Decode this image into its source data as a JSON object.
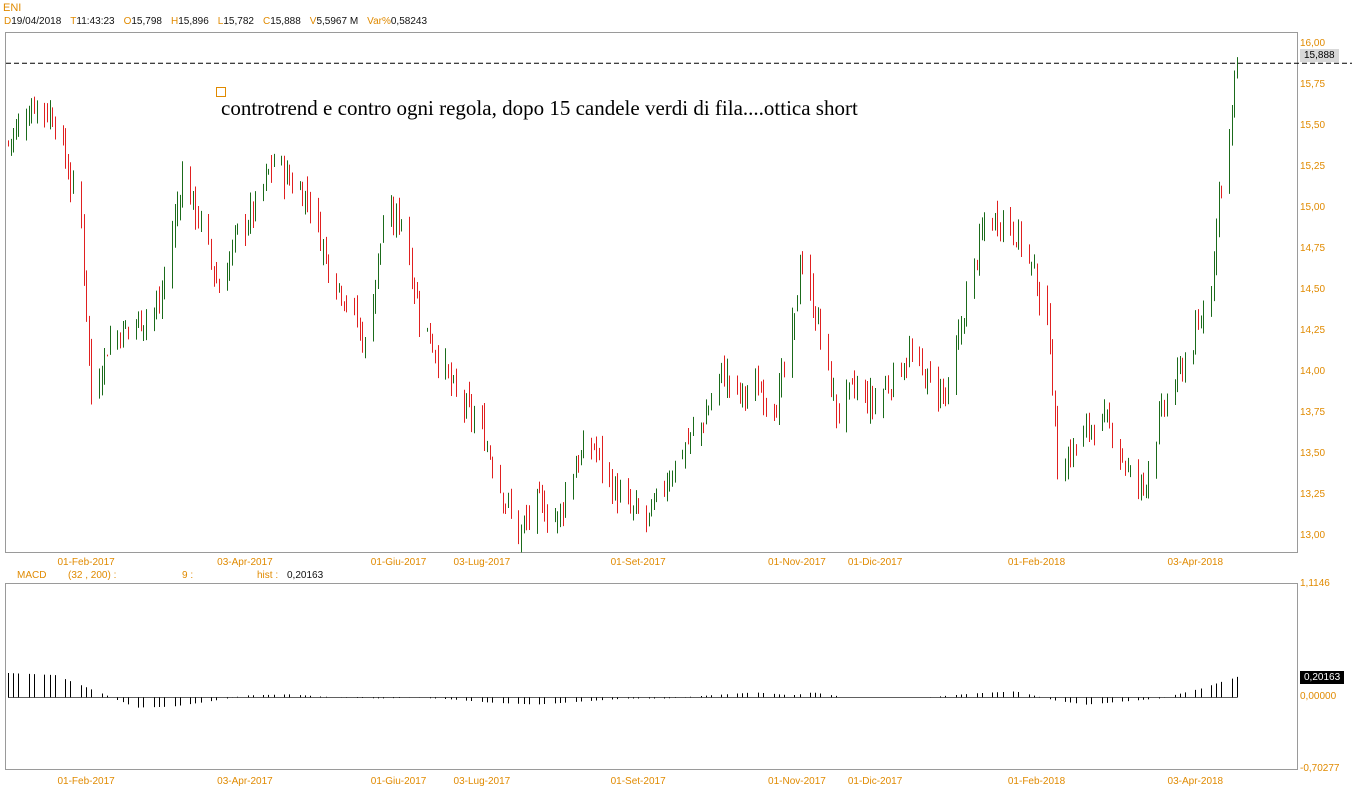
{
  "header": {
    "symbol": "ENI",
    "quote": [
      {
        "key": "D",
        "value": "19/04/2018"
      },
      {
        "key": "T",
        "value": "11:43:23"
      },
      {
        "key": "O",
        "value": "15,798"
      },
      {
        "key": "H",
        "value": "15,896"
      },
      {
        "key": "L",
        "value": "15,782"
      },
      {
        "key": "C",
        "value": "15,888"
      },
      {
        "key": "V",
        "value": "5,5967 M"
      },
      {
        "key": "Var%",
        "value": "0,58243"
      }
    ]
  },
  "annotation": {
    "text": "controtrend e contro ogni regola, dopo 15 candele verdi di fila....ottica short"
  },
  "price_panel": {
    "last_label": "15,888",
    "y_ticks": [
      "16,00",
      "15,75",
      "15,50",
      "15,25",
      "15,00",
      "14,75",
      "14,50",
      "14,25",
      "14,00",
      "13,75",
      "13,50",
      "13,25",
      "13,00"
    ],
    "x_ticks": [
      "01-Feb-2017",
      "03-Apr-2017",
      "01-Giu-2017",
      "03-Lug-2017",
      "01-Set-2017",
      "01-Nov-2017",
      "01-Dic-2017",
      "01-Feb-2018",
      "03-Apr-2018"
    ]
  },
  "macd_panel": {
    "label": "MACD",
    "params": "(32 , 200) :",
    "signal": "9 :",
    "hist_label": "hist :",
    "hist_value": "0,20163",
    "y_ticks": [
      "1,1146",
      "0,00000",
      "-0,70277"
    ],
    "last_label": "0,20163",
    "x_ticks": [
      "01-Feb-2017",
      "03-Apr-2017",
      "01-Giu-2017",
      "03-Lug-2017",
      "01-Set-2017",
      "01-Nov-2017",
      "01-Dic-2017",
      "01-Feb-2018",
      "03-Apr-2018"
    ]
  },
  "colors": {
    "up": "#1b6b1b",
    "down": "#e02020",
    "axis_text": "#e08a00",
    "hist": "#000000"
  },
  "chart_data": [
    {
      "type": "candlestick",
      "title": "ENI",
      "x_range": [
        "2017-01-02",
        "2018-04-19"
      ],
      "ylim": [
        12.9,
        16.07
      ],
      "last_close": 15.888,
      "reference_line": 15.888,
      "close_path": [
        {
          "x": "2017-01-02",
          "close": 15.4
        },
        {
          "x": "2017-01-12",
          "close": 15.65
        },
        {
          "x": "2017-01-20",
          "close": 15.55
        },
        {
          "x": "2017-01-30",
          "close": 14.9
        },
        {
          "x": "2017-02-03",
          "close": 13.85
        },
        {
          "x": "2017-02-10",
          "close": 14.2
        },
        {
          "x": "2017-02-20",
          "close": 14.3
        },
        {
          "x": "2017-03-01",
          "close": 14.4
        },
        {
          "x": "2017-03-10",
          "close": 15.2
        },
        {
          "x": "2017-03-17",
          "close": 14.9
        },
        {
          "x": "2017-03-24",
          "close": 14.5
        },
        {
          "x": "2017-03-31",
          "close": 14.85
        },
        {
          "x": "2017-04-07",
          "close": 15.0
        },
        {
          "x": "2017-04-14",
          "close": 15.3
        },
        {
          "x": "2017-04-21",
          "close": 15.15
        },
        {
          "x": "2017-04-28",
          "close": 15.05
        },
        {
          "x": "2017-05-05",
          "close": 14.65
        },
        {
          "x": "2017-05-15",
          "close": 14.35
        },
        {
          "x": "2017-05-19",
          "close": 14.15
        },
        {
          "x": "2017-05-26",
          "close": 14.9
        },
        {
          "x": "2017-06-02",
          "close": 14.95
        },
        {
          "x": "2017-06-09",
          "close": 14.35
        },
        {
          "x": "2017-06-16",
          "close": 14.1
        },
        {
          "x": "2017-06-23",
          "close": 13.85
        },
        {
          "x": "2017-07-03",
          "close": 13.65
        },
        {
          "x": "2017-07-10",
          "close": 13.3
        },
        {
          "x": "2017-07-17",
          "close": 13.0
        },
        {
          "x": "2017-07-24",
          "close": 13.2
        },
        {
          "x": "2017-08-01",
          "close": 13.1
        },
        {
          "x": "2017-08-08",
          "close": 13.45
        },
        {
          "x": "2017-08-15",
          "close": 13.55
        },
        {
          "x": "2017-08-22",
          "close": 13.3
        },
        {
          "x": "2017-08-29",
          "close": 13.15
        },
        {
          "x": "2017-09-05",
          "close": 13.1
        },
        {
          "x": "2017-09-12",
          "close": 13.35
        },
        {
          "x": "2017-09-19",
          "close": 13.55
        },
        {
          "x": "2017-09-26",
          "close": 13.7
        },
        {
          "x": "2017-10-03",
          "close": 14.0
        },
        {
          "x": "2017-10-10",
          "close": 13.85
        },
        {
          "x": "2017-10-17",
          "close": 13.9
        },
        {
          "x": "2017-10-24",
          "close": 13.8
        },
        {
          "x": "2017-10-31",
          "close": 14.3
        },
        {
          "x": "2017-11-02",
          "close": 14.7
        },
        {
          "x": "2017-11-09",
          "close": 14.3
        },
        {
          "x": "2017-11-16",
          "close": 13.75
        },
        {
          "x": "2017-11-23",
          "close": 13.9
        },
        {
          "x": "2017-11-30",
          "close": 13.8
        },
        {
          "x": "2017-12-07",
          "close": 13.95
        },
        {
          "x": "2017-12-14",
          "close": 14.1
        },
        {
          "x": "2017-12-21",
          "close": 13.95
        },
        {
          "x": "2017-12-29",
          "close": 13.85
        },
        {
          "x": "2018-01-05",
          "close": 14.45
        },
        {
          "x": "2018-01-12",
          "close": 14.9
        },
        {
          "x": "2018-01-19",
          "close": 14.95
        },
        {
          "x": "2018-01-26",
          "close": 14.8
        },
        {
          "x": "2018-02-01",
          "close": 14.55
        },
        {
          "x": "2018-02-06",
          "close": 14.2
        },
        {
          "x": "2018-02-09",
          "close": 13.4
        },
        {
          "x": "2018-02-16",
          "close": 13.55
        },
        {
          "x": "2018-02-23",
          "close": 13.7
        },
        {
          "x": "2018-03-02",
          "close": 13.65
        },
        {
          "x": "2018-03-09",
          "close": 13.35
        },
        {
          "x": "2018-03-14",
          "close": 13.3
        },
        {
          "x": "2018-03-21",
          "close": 13.75
        },
        {
          "x": "2018-03-28",
          "close": 14.0
        },
        {
          "x": "2018-04-04",
          "close": 14.25
        },
        {
          "x": "2018-04-09",
          "close": 14.55
        },
        {
          "x": "2018-04-12",
          "close": 15.1
        },
        {
          "x": "2018-04-16",
          "close": 15.45
        },
        {
          "x": "2018-04-19",
          "close": 15.888
        }
      ]
    },
    {
      "type": "bar",
      "title": "MACD",
      "ylim": [
        -0.70277,
        1.1146
      ],
      "last_value": 0.20163,
      "hist_path": [
        {
          "x": "2017-01-02",
          "v": 0.24
        },
        {
          "x": "2017-01-20",
          "v": 0.22
        },
        {
          "x": "2017-02-06",
          "v": 0.05
        },
        {
          "x": "2017-02-20",
          "v": -0.1
        },
        {
          "x": "2017-03-06",
          "v": -0.09
        },
        {
          "x": "2017-03-20",
          "v": -0.04
        },
        {
          "x": "2017-04-03",
          "v": 0.02
        },
        {
          "x": "2017-04-20",
          "v": 0.03
        },
        {
          "x": "2017-05-08",
          "v": 0.0
        },
        {
          "x": "2017-05-25",
          "v": -0.01
        },
        {
          "x": "2017-06-08",
          "v": 0.0
        },
        {
          "x": "2017-06-22",
          "v": -0.02
        },
        {
          "x": "2017-07-06",
          "v": -0.05
        },
        {
          "x": "2017-07-24",
          "v": -0.07
        },
        {
          "x": "2017-08-10",
          "v": -0.04
        },
        {
          "x": "2017-08-28",
          "v": -0.01
        },
        {
          "x": "2017-09-12",
          "v": -0.01
        },
        {
          "x": "2017-09-28",
          "v": 0.02
        },
        {
          "x": "2017-10-16",
          "v": 0.05
        },
        {
          "x": "2017-10-30",
          "v": 0.02
        },
        {
          "x": "2017-11-07",
          "v": 0.05
        },
        {
          "x": "2017-11-20",
          "v": 0.0
        },
        {
          "x": "2017-12-05",
          "v": 0.0
        },
        {
          "x": "2017-12-21",
          "v": 0.0
        },
        {
          "x": "2018-01-08",
          "v": 0.04
        },
        {
          "x": "2018-01-24",
          "v": 0.06
        },
        {
          "x": "2018-02-08",
          "v": -0.03
        },
        {
          "x": "2018-02-20",
          "v": -0.07
        },
        {
          "x": "2018-03-06",
          "v": -0.04
        },
        {
          "x": "2018-03-20",
          "v": -0.01
        },
        {
          "x": "2018-04-04",
          "v": 0.08
        },
        {
          "x": "2018-04-19",
          "v": 0.20163
        }
      ]
    }
  ]
}
